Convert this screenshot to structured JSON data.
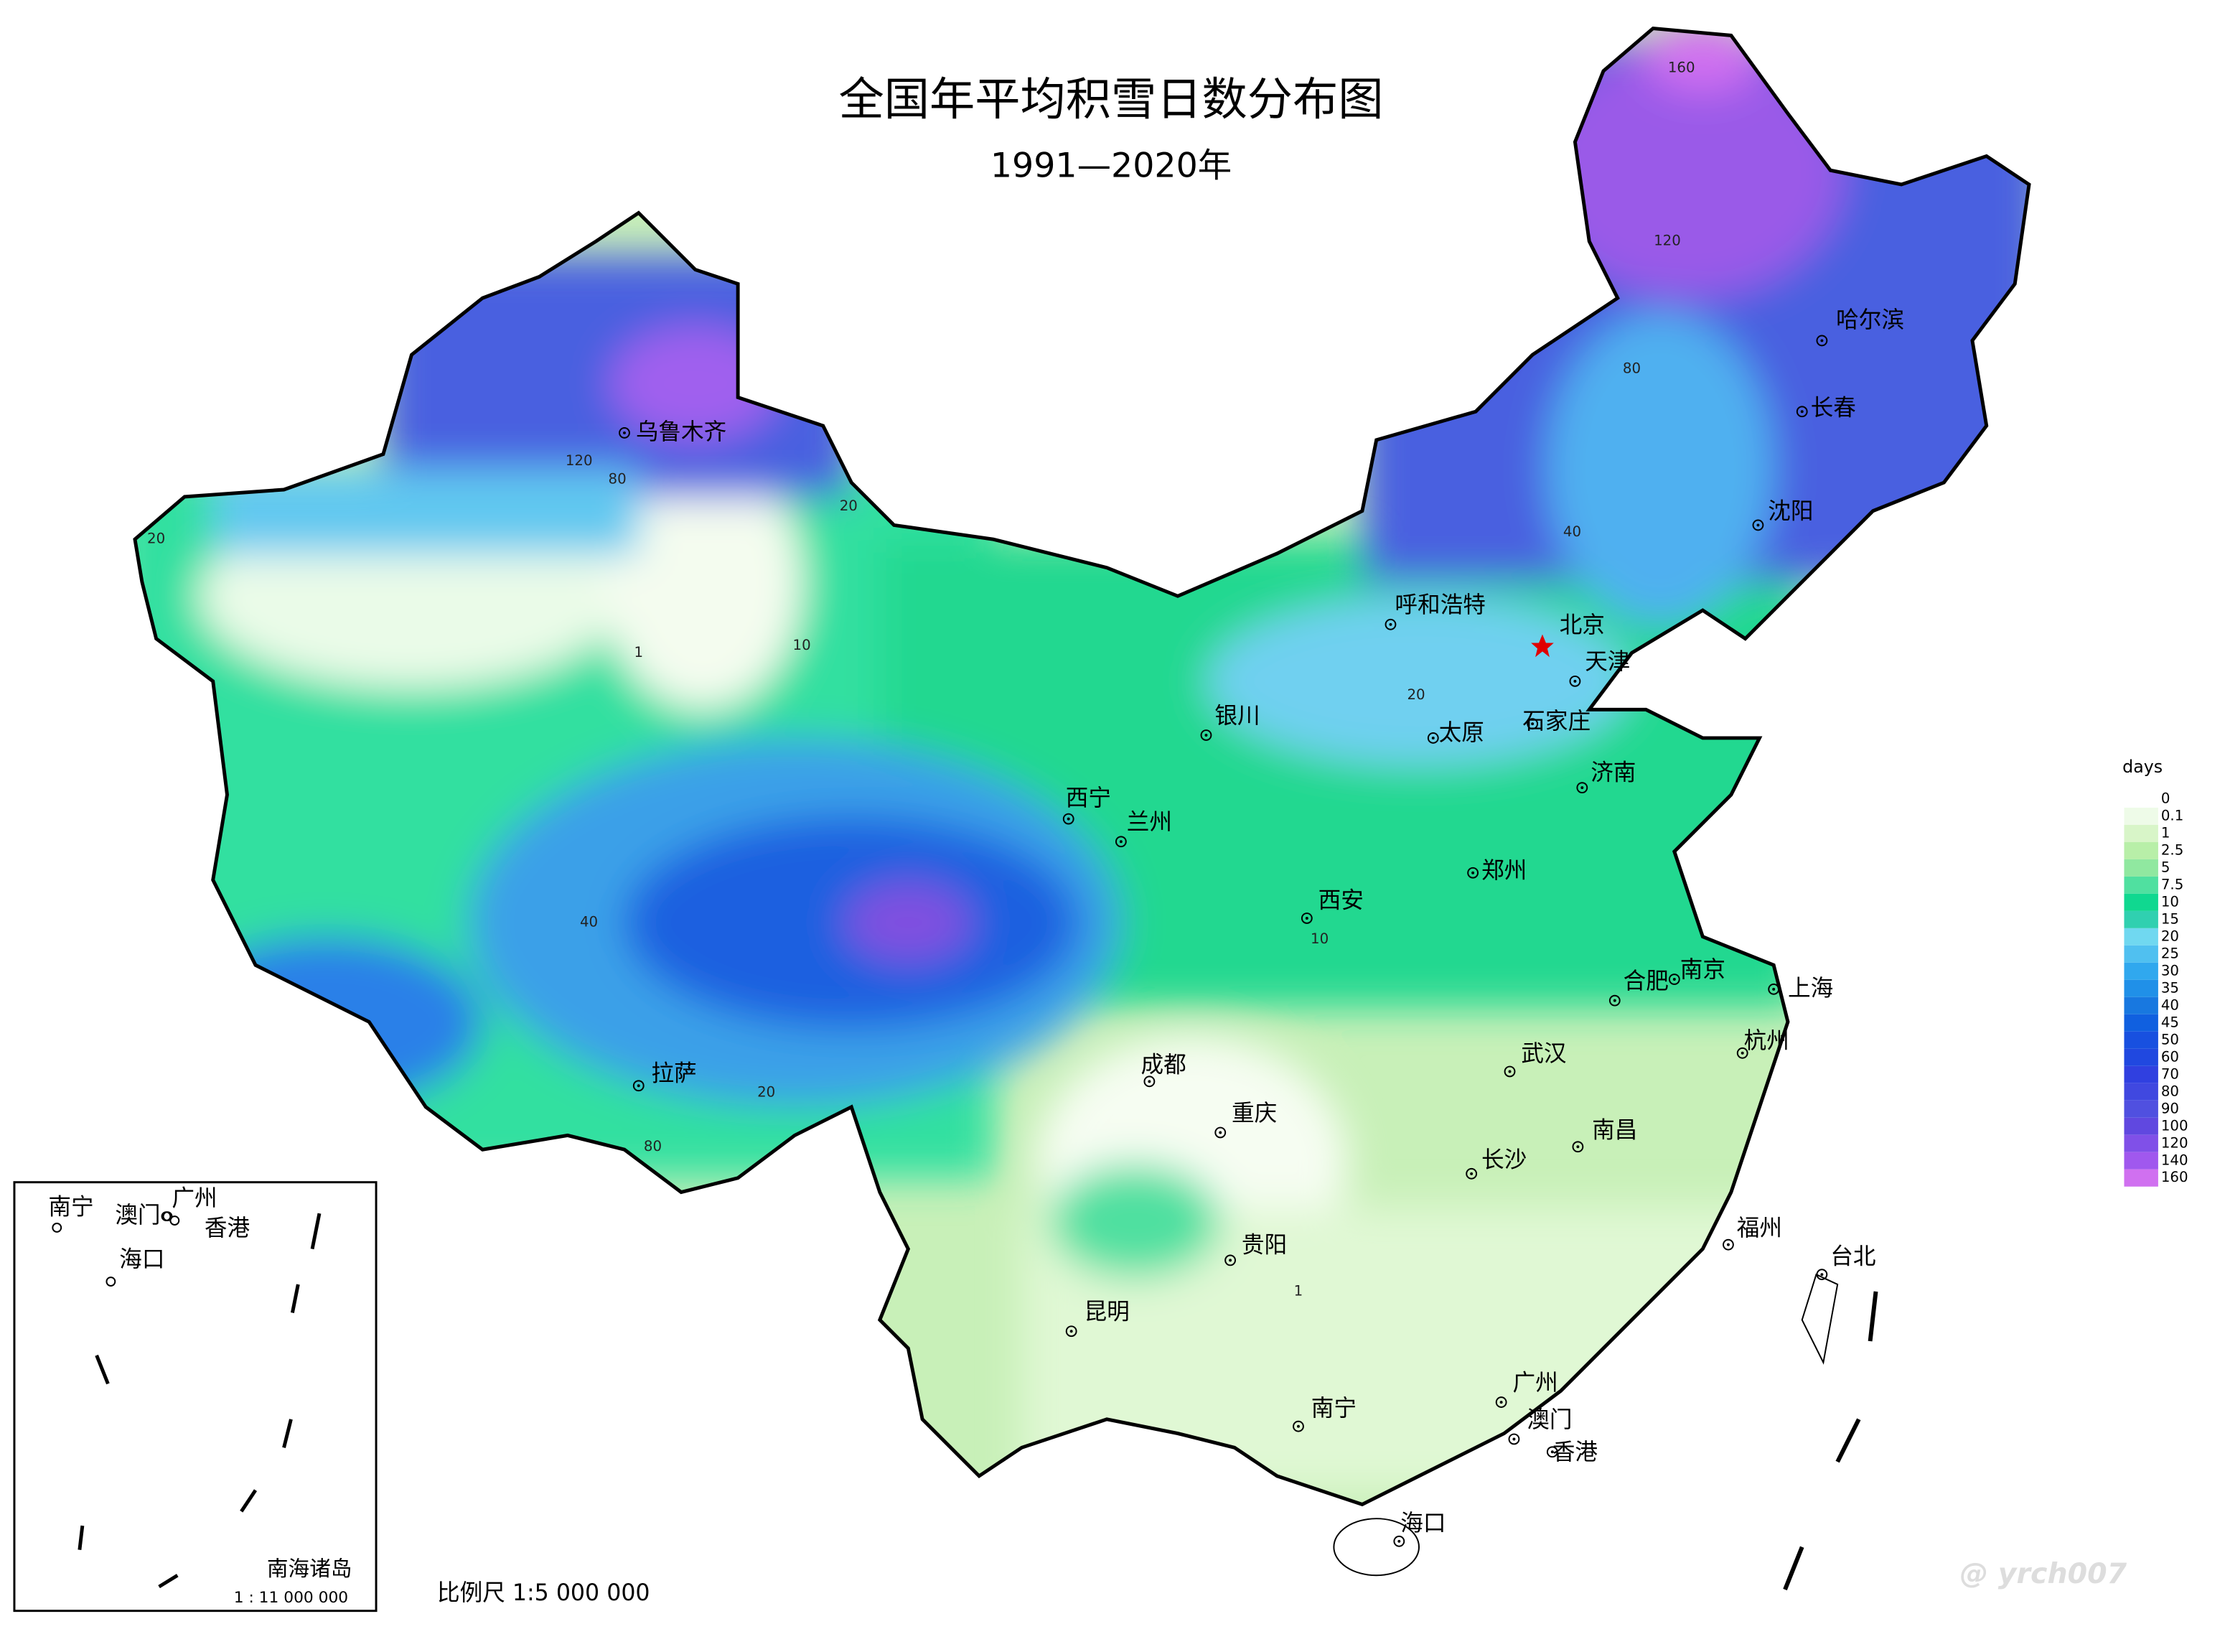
{
  "header": {
    "title": "全国年平均积雪日数分布图",
    "subtitle": "1991—2020年"
  },
  "cities": [
    "乌鲁木齐",
    "呼和浩特",
    "北京",
    "天津",
    "石家庄",
    "太原",
    "济南",
    "银川",
    "西宁",
    "兰州",
    "郑州",
    "西安",
    "合肥",
    "南京",
    "上海",
    "杭州",
    "武汉",
    "成都",
    "重庆",
    "拉萨",
    "长沙",
    "南昌",
    "福州",
    "台北",
    "贵阳",
    "昆明",
    "南宁",
    "广州",
    "澳门",
    "香港",
    "海口",
    "哈尔滨",
    "长春",
    "沈阳"
  ],
  "contour_labels": [
    "160",
    "120",
    "80",
    "40",
    "20",
    "10",
    "1",
    "40",
    "80",
    "120",
    "20",
    "20",
    "10",
    "1",
    "20",
    "80"
  ],
  "legend": {
    "title": "days",
    "labels": [
      "0",
      "0.1",
      "1",
      "2.5",
      "5",
      "7.5",
      "10",
      "15",
      "20",
      "25",
      "30",
      "35",
      "40",
      "45",
      "50",
      "60",
      "70",
      "80",
      "90",
      "100",
      "120",
      "140",
      "160"
    ],
    "colors": [
      "#ffffff",
      "#eefbe8",
      "#d8f5c8",
      "#b8efa8",
      "#90e8a0",
      "#50e0a0",
      "#10d890",
      "#30d0b0",
      "#70d8f0",
      "#50c0f0",
      "#30a8ee",
      "#2090e8",
      "#1878e0",
      "#1060e0",
      "#1850e0",
      "#2048e0",
      "#3040e0",
      "#4048e0",
      "#5050e0",
      "#6048e0",
      "#8050e8",
      "#a058ee",
      "#d070f0"
    ]
  },
  "inset": {
    "cities": [
      "南宁",
      "澳门",
      "广州",
      "香港",
      "海口"
    ],
    "title": "南海诸岛",
    "scale": "1 : 11 000 000"
  },
  "scale": "比例尺  1:5 000 000",
  "watermark": "@ yrch007"
}
